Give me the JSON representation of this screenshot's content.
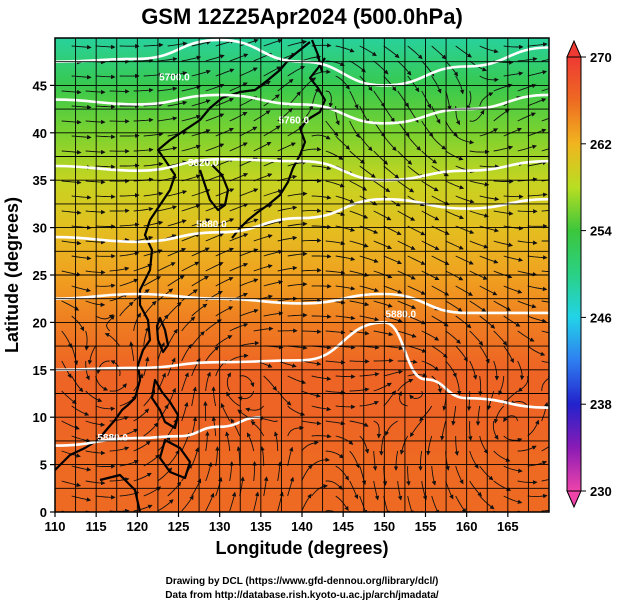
{
  "chart_data": {
    "type": "heatmap",
    "title": "GSM 12Z25Apr2024 (500.0hPa)",
    "xlabel": "Longitude (degrees)",
    "ylabel": "Latitude  (degrees)",
    "xlim": [
      110,
      170
    ],
    "ylim": [
      0,
      50
    ],
    "x_ticks": [
      110,
      115,
      120,
      125,
      130,
      135,
      140,
      145,
      150,
      155,
      160,
      165
    ],
    "y_ticks": [
      0,
      5,
      10,
      15,
      20,
      25,
      30,
      35,
      40,
      45
    ],
    "grid": true,
    "colorbar": {
      "min": 230,
      "max": 270,
      "ticks": [
        230,
        238,
        246,
        254,
        262,
        270
      ],
      "stops": [
        {
          "value": 230,
          "color": "#ee44aa"
        },
        {
          "value": 234,
          "color": "#8a1bb5"
        },
        {
          "value": 238,
          "color": "#2222cc"
        },
        {
          "value": 242,
          "color": "#2f7ef0"
        },
        {
          "value": 246,
          "color": "#22d3e8"
        },
        {
          "value": 250,
          "color": "#2ad184"
        },
        {
          "value": 254,
          "color": "#3cc63c"
        },
        {
          "value": 258,
          "color": "#b8de22"
        },
        {
          "value": 262,
          "color": "#f1b51f"
        },
        {
          "value": 266,
          "color": "#ee6a22"
        },
        {
          "value": 270,
          "color": "#ee3a33"
        }
      ]
    },
    "field_samples": {
      "latitudes": [
        50,
        45,
        40,
        35,
        30,
        25,
        20,
        15,
        10,
        5,
        0
      ],
      "values": [
        249,
        253,
        256,
        259,
        261,
        263,
        265,
        266.5,
        266.5,
        266,
        266
      ]
    },
    "contour_lines": [
      {
        "level": "5700.0",
        "lon": [
          110,
          120,
          130,
          140,
          150,
          160,
          170
        ],
        "lat": [
          47.5,
          47.8,
          49.8,
          47.5,
          45,
          47,
          49
        ]
      },
      {
        "level": "5760.0",
        "lon": [
          110,
          120,
          130,
          140,
          150,
          160,
          170
        ],
        "lat": [
          43.5,
          43,
          44,
          43,
          41,
          42.5,
          44
        ]
      },
      {
        "level": "5820.0",
        "lon": [
          110,
          120,
          130,
          140,
          150,
          160,
          170
        ],
        "lat": [
          36.5,
          36,
          37.2,
          37,
          35,
          36,
          37
        ]
      },
      {
        "level": "5880.0",
        "lon": [
          110,
          120,
          130,
          140,
          150,
          160,
          170
        ],
        "lat": [
          29,
          28.5,
          29.5,
          31,
          33,
          32,
          33
        ]
      },
      {
        "level": "5940.0",
        "lon": [
          110,
          120,
          130,
          140,
          150,
          160,
          170
        ],
        "lat": [
          22.5,
          23,
          22.5,
          22,
          23,
          21,
          21
        ]
      },
      {
        "level": "5880.0",
        "lon": [
          110,
          120,
          130,
          140,
          150,
          155,
          160,
          170
        ],
        "lat": [
          15,
          15.2,
          15.8,
          16,
          20,
          14,
          12,
          11
        ]
      },
      {
        "level": "5880.0",
        "lon": [
          110,
          120,
          125,
          130,
          135
        ],
        "lat": [
          7,
          7.8,
          8,
          9,
          10
        ]
      }
    ],
    "contour_label_points": [
      {
        "text": "5700.0",
        "lon": 124.5,
        "lat": 45.5
      },
      {
        "text": "5760.0",
        "lon": 139,
        "lat": 41
      },
      {
        "text": "5820.0",
        "lon": 128,
        "lat": 36.5
      },
      {
        "text": "5880.0",
        "lon": 129,
        "lat": 30
      },
      {
        "text": "5880.0",
        "lon": 152,
        "lat": 20.5
      },
      {
        "text": "5880.0",
        "lon": 117,
        "lat": 7.5
      }
    ],
    "vortex_centers": [
      {
        "lon": 143,
        "lat": 45
      },
      {
        "lon": 160,
        "lat": 41
      },
      {
        "lon": 132,
        "lat": 14
      },
      {
        "lon": 117,
        "lat": 14
      },
      {
        "lon": 155,
        "lat": 13
      },
      {
        "lon": 165,
        "lat": 9
      }
    ]
  },
  "credits": {
    "line1": "Drawing by DCL (https://www.gfd-dennou.org/library/dcl/)",
    "line2": "Data from http://database.rish.kyoto-u.ac.jp/arch/jmadata/"
  }
}
